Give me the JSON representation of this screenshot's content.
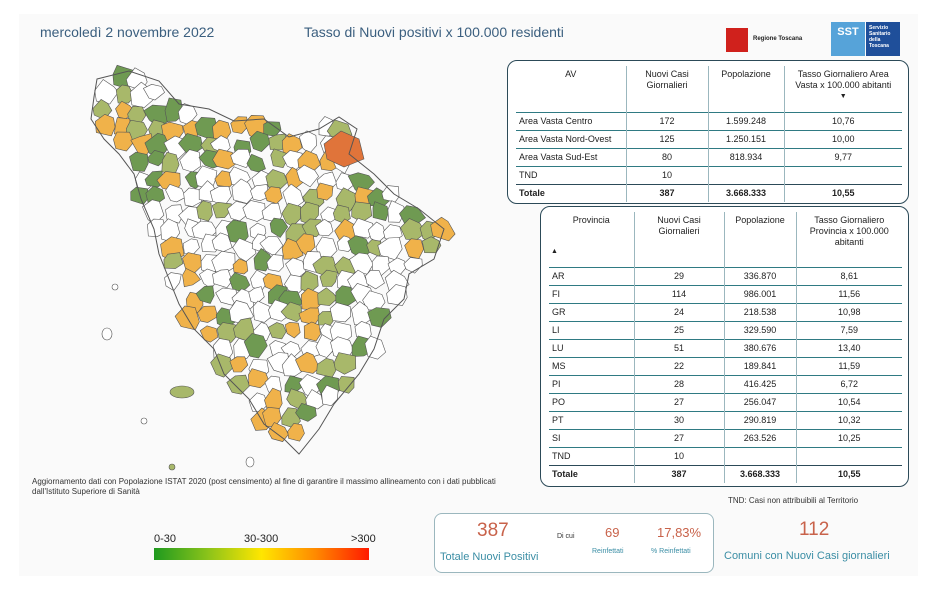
{
  "header": {
    "date": "mercoledì 2 novembre 2022",
    "title": "Tasso di Nuovi positivi x 100.000 residenti",
    "logo_regione": "Regione Toscana",
    "logo_sst_short": "SST",
    "logo_sst_long": "Servizio Sanitario della Toscana"
  },
  "av_table": {
    "headers": [
      "AV",
      "Nuovi Casi Giornalieri",
      "Popolazione",
      "Tasso Giornaliero Area Vasta x 100.000 abitanti"
    ],
    "rows": [
      [
        "Area Vasta Centro",
        "172",
        "1.599.248",
        "10,76"
      ],
      [
        "Area Vasta Nord-Ovest",
        "125",
        "1.250.151",
        "10,00"
      ],
      [
        "Area Vasta Sud-Est",
        "80",
        "818.934",
        "9,77"
      ],
      [
        "TND",
        "10",
        "",
        ""
      ]
    ],
    "total": [
      "Totale",
      "387",
      "3.668.333",
      "10,55"
    ]
  },
  "prov_table": {
    "headers": [
      "Provincia",
      "Nuovi Casi Giornalieri",
      "Popolazione",
      "Tasso Giornaliero Provincia x 100.000 abitanti"
    ],
    "rows": [
      [
        "AR",
        "29",
        "336.870",
        "8,61"
      ],
      [
        "FI",
        "114",
        "986.001",
        "11,56"
      ],
      [
        "GR",
        "24",
        "218.538",
        "10,98"
      ],
      [
        "LI",
        "25",
        "329.590",
        "7,59"
      ],
      [
        "LU",
        "51",
        "380.676",
        "13,40"
      ],
      [
        "MS",
        "22",
        "189.841",
        "11,59"
      ],
      [
        "PI",
        "28",
        "416.425",
        "6,72"
      ],
      [
        "PO",
        "27",
        "256.047",
        "10,54"
      ],
      [
        "PT",
        "30",
        "290.819",
        "10,32"
      ],
      [
        "SI",
        "27",
        "263.526",
        "10,25"
      ],
      [
        "TND",
        "10",
        "",
        ""
      ]
    ],
    "total": [
      "Totale",
      "387",
      "3.668.333",
      "10,55"
    ]
  },
  "note": "Aggiornamento dati con Popolazione ISTAT 2020 (post censimento) al fine di garantire il massimo allineamento con i dati pubblicati dall'Istituto Superiore di Sanità",
  "tnd_note": "TND:  Casi non attribuibili al Territorio",
  "legend": {
    "low": "0-30",
    "mid": "30-300",
    "high": ">300"
  },
  "kpi": {
    "total_value": "387",
    "total_label": "Totale Nuovi Positivi",
    "dicui": "Di cui",
    "reinf_value": "69",
    "reinf_label": "Reinfettati",
    "reinf_pct": "17,83%",
    "reinf_pct_label": "% Reinfettati",
    "comuni_value": "112",
    "comuni_label": "Comuni con Nuovi Casi giornalieri"
  },
  "colors": {
    "green_dark": "#6f9a52",
    "green_light": "#a8b86a",
    "orange": "#f0b24a",
    "red": "#e0743a",
    "accent": "#c8624a",
    "teal": "#3b8ea5"
  }
}
